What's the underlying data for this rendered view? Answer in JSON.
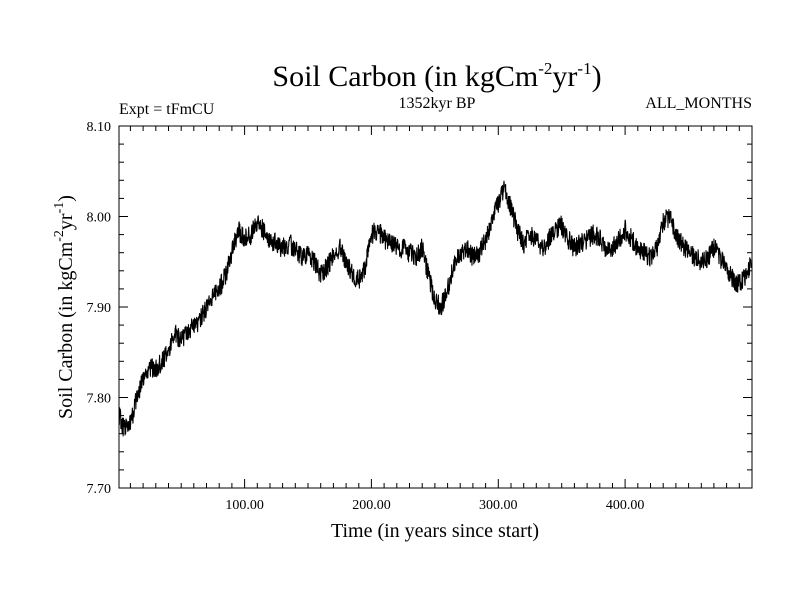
{
  "chart_data": {
    "type": "line",
    "title": {
      "main": "Soil Carbon (in kgCm",
      "sup1": "-2",
      "mid": "yr",
      "sup2": "-1",
      "end": ")"
    },
    "left_label": "Expt = tFmCU",
    "center_label": "1352kyr BP",
    "right_label": "ALL_MONTHS",
    "xlabel": "Time (in years since start)",
    "ylabel": {
      "main": "Soil Carbon (in kgCm",
      "sup1": "-2",
      "mid": "yr",
      "sup2": "-1",
      "end": ")"
    },
    "xlim": [
      1,
      500
    ],
    "ylim": [
      7.7,
      8.1
    ],
    "x_ticks": [
      100,
      200,
      300,
      400
    ],
    "x_tick_labels": [
      "100.00",
      "200.00",
      "300.00",
      "400.00"
    ],
    "y_ticks": [
      7.7,
      7.8,
      7.9,
      8.0,
      8.1
    ],
    "y_tick_labels": [
      "7.70",
      "7.80",
      "7.90",
      "8.00",
      "8.10"
    ],
    "series": [
      {
        "name": "Soil Carbon",
        "color": "#000000",
        "x": [
          1,
          5,
          10,
          15,
          20,
          25,
          30,
          35,
          40,
          45,
          50,
          55,
          60,
          65,
          70,
          75,
          80,
          85,
          90,
          95,
          100,
          105,
          110,
          115,
          120,
          125,
          130,
          135,
          140,
          145,
          150,
          155,
          160,
          165,
          170,
          175,
          180,
          185,
          190,
          195,
          200,
          205,
          210,
          215,
          220,
          225,
          230,
          235,
          240,
          245,
          250,
          255,
          260,
          265,
          270,
          275,
          280,
          285,
          290,
          295,
          300,
          305,
          310,
          315,
          320,
          325,
          330,
          335,
          340,
          345,
          350,
          355,
          360,
          365,
          370,
          375,
          380,
          385,
          390,
          395,
          400,
          405,
          410,
          415,
          420,
          425,
          430,
          435,
          440,
          445,
          450,
          455,
          460,
          465,
          470,
          475,
          480,
          485,
          490,
          495,
          500
        ],
        "y": [
          7.78,
          7.765,
          7.77,
          7.8,
          7.82,
          7.835,
          7.83,
          7.84,
          7.85,
          7.87,
          7.865,
          7.87,
          7.88,
          7.885,
          7.9,
          7.91,
          7.92,
          7.935,
          7.96,
          7.985,
          7.975,
          7.98,
          7.995,
          7.985,
          7.975,
          7.97,
          7.965,
          7.97,
          7.965,
          7.955,
          7.96,
          7.95,
          7.935,
          7.945,
          7.955,
          7.965,
          7.95,
          7.935,
          7.93,
          7.945,
          7.98,
          7.985,
          7.975,
          7.97,
          7.965,
          7.965,
          7.96,
          7.955,
          7.965,
          7.935,
          7.905,
          7.9,
          7.92,
          7.945,
          7.96,
          7.965,
          7.955,
          7.96,
          7.975,
          7.995,
          8.015,
          8.03,
          8.01,
          7.985,
          7.97,
          7.98,
          7.975,
          7.965,
          7.975,
          7.985,
          7.99,
          7.975,
          7.965,
          7.97,
          7.975,
          7.98,
          7.975,
          7.96,
          7.965,
          7.975,
          7.985,
          7.975,
          7.965,
          7.96,
          7.955,
          7.965,
          7.995,
          8.0,
          7.98,
          7.97,
          7.96,
          7.955,
          7.95,
          7.955,
          7.965,
          7.955,
          7.94,
          7.93,
          7.925,
          7.935,
          7.95
        ],
        "noise_amplitude": 0.022
      }
    ]
  }
}
